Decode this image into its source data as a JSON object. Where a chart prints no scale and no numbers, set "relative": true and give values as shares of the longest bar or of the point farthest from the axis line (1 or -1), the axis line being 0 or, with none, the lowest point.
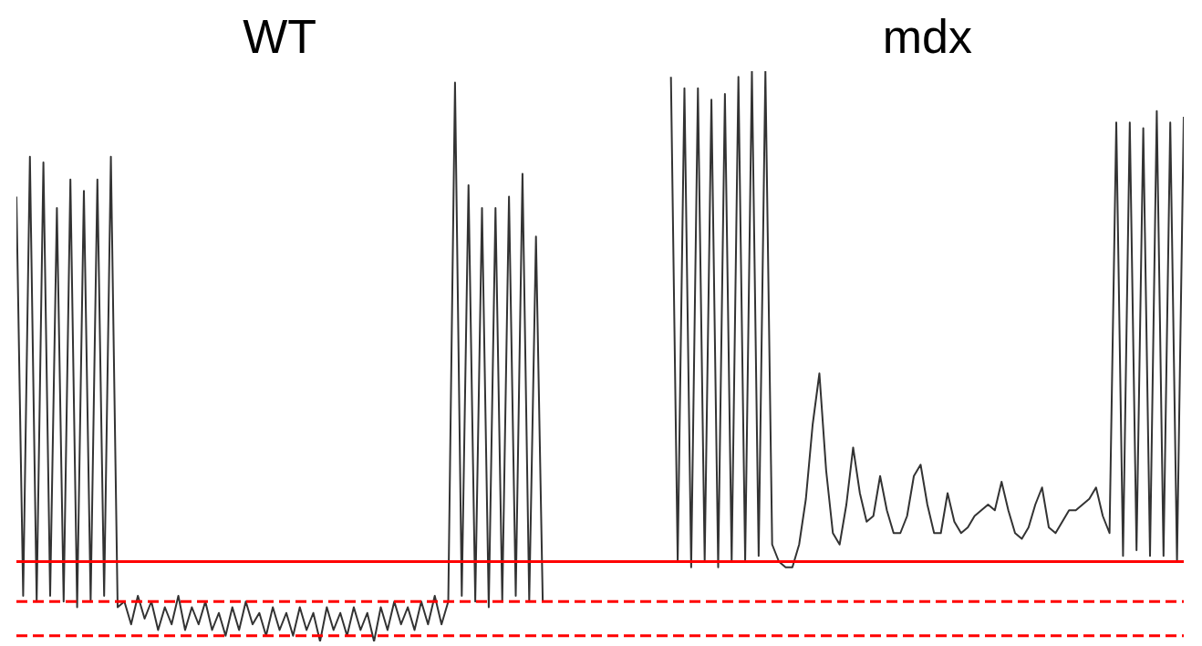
{
  "chart_data": {
    "type": "line",
    "relative": true,
    "marker": "none",
    "categories": [
      null,
      null,
      null,
      null,
      null,
      null,
      null,
      null,
      null,
      null,
      null,
      null,
      null,
      null,
      null,
      null,
      null,
      null,
      null,
      null,
      null,
      null,
      null,
      null,
      null,
      null,
      null,
      null,
      null,
      null,
      null,
      null,
      null,
      null,
      null,
      null,
      null,
      null,
      null,
      null,
      null,
      null,
      null,
      null,
      null,
      null,
      null,
      null,
      null,
      null,
      null,
      null,
      null,
      null,
      null,
      null,
      null,
      null,
      null,
      null,
      null,
      null,
      null,
      null,
      null,
      null,
      null,
      null,
      null,
      null,
      null,
      null,
      null,
      null,
      null,
      null,
      null,
      null,
      null,
      null,
      null,
      null,
      null,
      null,
      null,
      null,
      null,
      null,
      null,
      null,
      null,
      null,
      null,
      null,
      null,
      null,
      null,
      null,
      null,
      null,
      null,
      null,
      null,
      null,
      null,
      null,
      null,
      null,
      null,
      null,
      null,
      null,
      null,
      null,
      null,
      null,
      null,
      null,
      null,
      null,
      null,
      null,
      null,
      null,
      null,
      null,
      null,
      null,
      null,
      null,
      null,
      null,
      null,
      null,
      null,
      null,
      null,
      null,
      null,
      null,
      null,
      null,
      null,
      null,
      null,
      null,
      null,
      null,
      null,
      null,
      null,
      null,
      null,
      null,
      null,
      null,
      null,
      null,
      null,
      null,
      null,
      null,
      null,
      null,
      null,
      null,
      null,
      null,
      null,
      null,
      null,
      null,
      null,
      null
    ],
    "series": [
      {
        "name": "WT",
        "color": "#333333",
        "values": [
          0.78,
          0.08,
          0.85,
          0.07,
          0.84,
          0.08,
          0.76,
          0.07,
          0.81,
          0.06,
          0.79,
          0.07,
          0.81,
          0.08,
          0.85,
          0.06,
          0.07,
          0.03,
          0.08,
          0.04,
          0.07,
          0.02,
          0.06,
          0.03,
          0.08,
          0.02,
          0.06,
          0.03,
          0.07,
          0.02,
          0.05,
          0.01,
          0.06,
          0.02,
          0.07,
          0.03,
          0.05,
          0.01,
          0.06,
          0.02,
          0.05,
          0.01,
          0.06,
          0.02,
          0.05,
          0.0,
          0.06,
          0.02,
          0.05,
          0.01,
          0.06,
          0.02,
          0.05,
          0.0,
          0.06,
          0.02,
          0.07,
          0.03,
          0.06,
          0.02,
          0.07,
          0.03,
          0.08,
          0.03,
          0.07,
          0.98,
          0.08,
          0.8,
          0.07,
          0.76,
          0.06,
          0.76,
          0.07,
          0.78,
          0.08,
          0.82,
          0.07,
          0.71,
          0.07,
          null,
          null,
          null,
          null,
          null,
          null,
          null,
          null,
          null,
          null,
          null,
          null,
          null,
          null,
          null,
          null,
          null,
          null,
          null,
          null,
          null,
          null,
          null,
          null,
          null,
          null,
          null,
          null,
          null,
          null,
          null,
          null,
          null,
          null,
          null,
          null,
          null,
          null,
          null,
          null,
          null,
          null,
          null,
          null,
          null,
          null,
          null,
          null,
          null,
          null,
          null,
          null,
          null,
          null,
          null,
          null,
          null,
          null,
          null,
          null,
          null,
          null,
          null,
          null,
          null,
          null,
          null,
          null,
          null,
          null,
          null,
          null,
          null,
          null,
          null,
          null,
          null,
          null,
          null,
          null,
          null,
          null,
          null,
          null,
          null,
          null,
          null,
          null,
          null,
          null,
          null,
          null,
          null,
          null,
          null
        ]
      },
      {
        "name": "mdx",
        "color": "#333333",
        "values": [
          null,
          null,
          null,
          null,
          null,
          null,
          null,
          null,
          null,
          null,
          null,
          null,
          null,
          null,
          null,
          null,
          null,
          null,
          null,
          null,
          null,
          null,
          null,
          null,
          null,
          null,
          null,
          null,
          null,
          null,
          null,
          null,
          null,
          null,
          null,
          null,
          null,
          null,
          null,
          null,
          null,
          null,
          null,
          null,
          null,
          null,
          null,
          null,
          null,
          null,
          null,
          null,
          null,
          null,
          null,
          null,
          null,
          null,
          null,
          null,
          null,
          null,
          null,
          null,
          null,
          null,
          null,
          null,
          null,
          null,
          null,
          null,
          null,
          null,
          null,
          null,
          null,
          null,
          null,
          null,
          null,
          null,
          null,
          null,
          null,
          null,
          null,
          null,
          null,
          null,
          null,
          null,
          null,
          null,
          null,
          null,
          null,
          0.99,
          0.14,
          0.97,
          0.13,
          0.97,
          0.14,
          0.95,
          0.13,
          0.96,
          0.14,
          0.99,
          0.14,
          1.0,
          0.15,
          1.0,
          0.17,
          0.14,
          0.13,
          0.13,
          0.17,
          0.25,
          0.38,
          0.47,
          0.3,
          0.19,
          0.17,
          0.24,
          0.34,
          0.26,
          0.21,
          0.22,
          0.29,
          0.23,
          0.19,
          0.19,
          0.22,
          0.29,
          0.31,
          0.24,
          0.19,
          0.19,
          0.26,
          0.21,
          0.19,
          0.2,
          0.22,
          0.23,
          0.24,
          0.23,
          0.28,
          0.23,
          0.19,
          0.18,
          0.2,
          0.24,
          0.27,
          0.2,
          0.19,
          0.21,
          0.23,
          0.23,
          0.24,
          0.25,
          0.27,
          0.22,
          0.19,
          0.91,
          0.15,
          0.91,
          0.16,
          0.9,
          0.15,
          0.93,
          0.15,
          0.91,
          0.14,
          0.92
        ]
      }
    ],
    "ref_lines": [
      {
        "axis": "y",
        "value": 0.14,
        "color": "#ff0000",
        "line_style": "solid"
      },
      {
        "axis": "y",
        "value": 0.07,
        "color": "#ff0000",
        "line_style": "dashed"
      },
      {
        "axis": "y",
        "value": 0.01,
        "color": "#ff0000",
        "line_style": "dashed"
      }
    ]
  }
}
